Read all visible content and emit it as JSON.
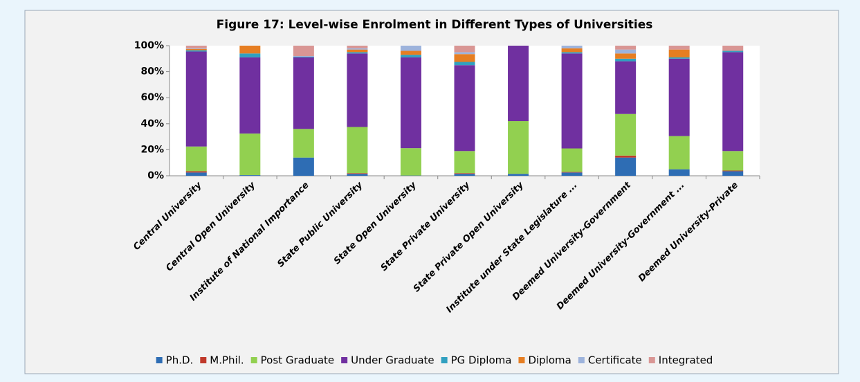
{
  "chart_data": {
    "type": "stacked_bar",
    "title": "Figure 17: Level-wise Enrolment in Different Types of Universities",
    "categories": [
      "Central University",
      "Central Open University",
      "Institute of National Importance",
      "State Public University",
      "State Open University",
      "State Private University",
      "State Private Open University",
      "Institute under State Legislature ...",
      "Deemed University-Government",
      "Deemed University-Government ...",
      "Deemed University-Private"
    ],
    "series": [
      {
        "name": "Ph.D.",
        "color": "#2e6db4",
        "values": [
          2.5,
          0.5,
          14,
          1.5,
          0.2,
          1.5,
          1.5,
          2.5,
          14,
          5,
          3.5
        ]
      },
      {
        "name": "M.Phil.",
        "color": "#c0392b",
        "values": [
          1,
          0,
          0,
          0.5,
          0,
          0.5,
          0,
          0.5,
          1.5,
          0,
          0.5
        ]
      },
      {
        "name": "Post Graduate",
        "color": "#92d050",
        "values": [
          19,
          32,
          22,
          35.5,
          21,
          17,
          40.5,
          18,
          32,
          25.5,
          15
        ]
      },
      {
        "name": "Under Graduate",
        "color": "#7030a0",
        "values": [
          73,
          58.5,
          55,
          56.5,
          69.8,
          66,
          58,
          73,
          40.5,
          59.5,
          76
        ]
      },
      {
        "name": "PG Diploma",
        "color": "#31a0c0",
        "values": [
          1,
          3,
          0.5,
          1,
          2,
          2.5,
          0,
          1,
          2,
          1,
          1
        ]
      },
      {
        "name": "Diploma",
        "color": "#e67e22",
        "values": [
          1,
          6,
          0,
          2,
          3,
          6,
          0,
          3,
          4,
          6,
          0
        ]
      },
      {
        "name": "Certificate",
        "color": "#9db3dc",
        "values": [
          0.5,
          0,
          0.5,
          1,
          4,
          1.5,
          0,
          2,
          3,
          0,
          0
        ]
      },
      {
        "name": "Integrated",
        "color": "#d99694",
        "values": [
          2,
          0,
          8,
          2,
          0,
          5,
          0,
          0,
          3,
          3,
          4
        ]
      }
    ],
    "ylim": [
      0,
      100
    ],
    "yticks": [
      {
        "value": 0,
        "label": "0%"
      },
      {
        "value": 20,
        "label": "20%"
      },
      {
        "value": 40,
        "label": "40%"
      },
      {
        "value": 60,
        "label": "60%"
      },
      {
        "value": 80,
        "label": "80%"
      },
      {
        "value": 100,
        "label": "100%"
      }
    ],
    "legend": "bottom"
  }
}
